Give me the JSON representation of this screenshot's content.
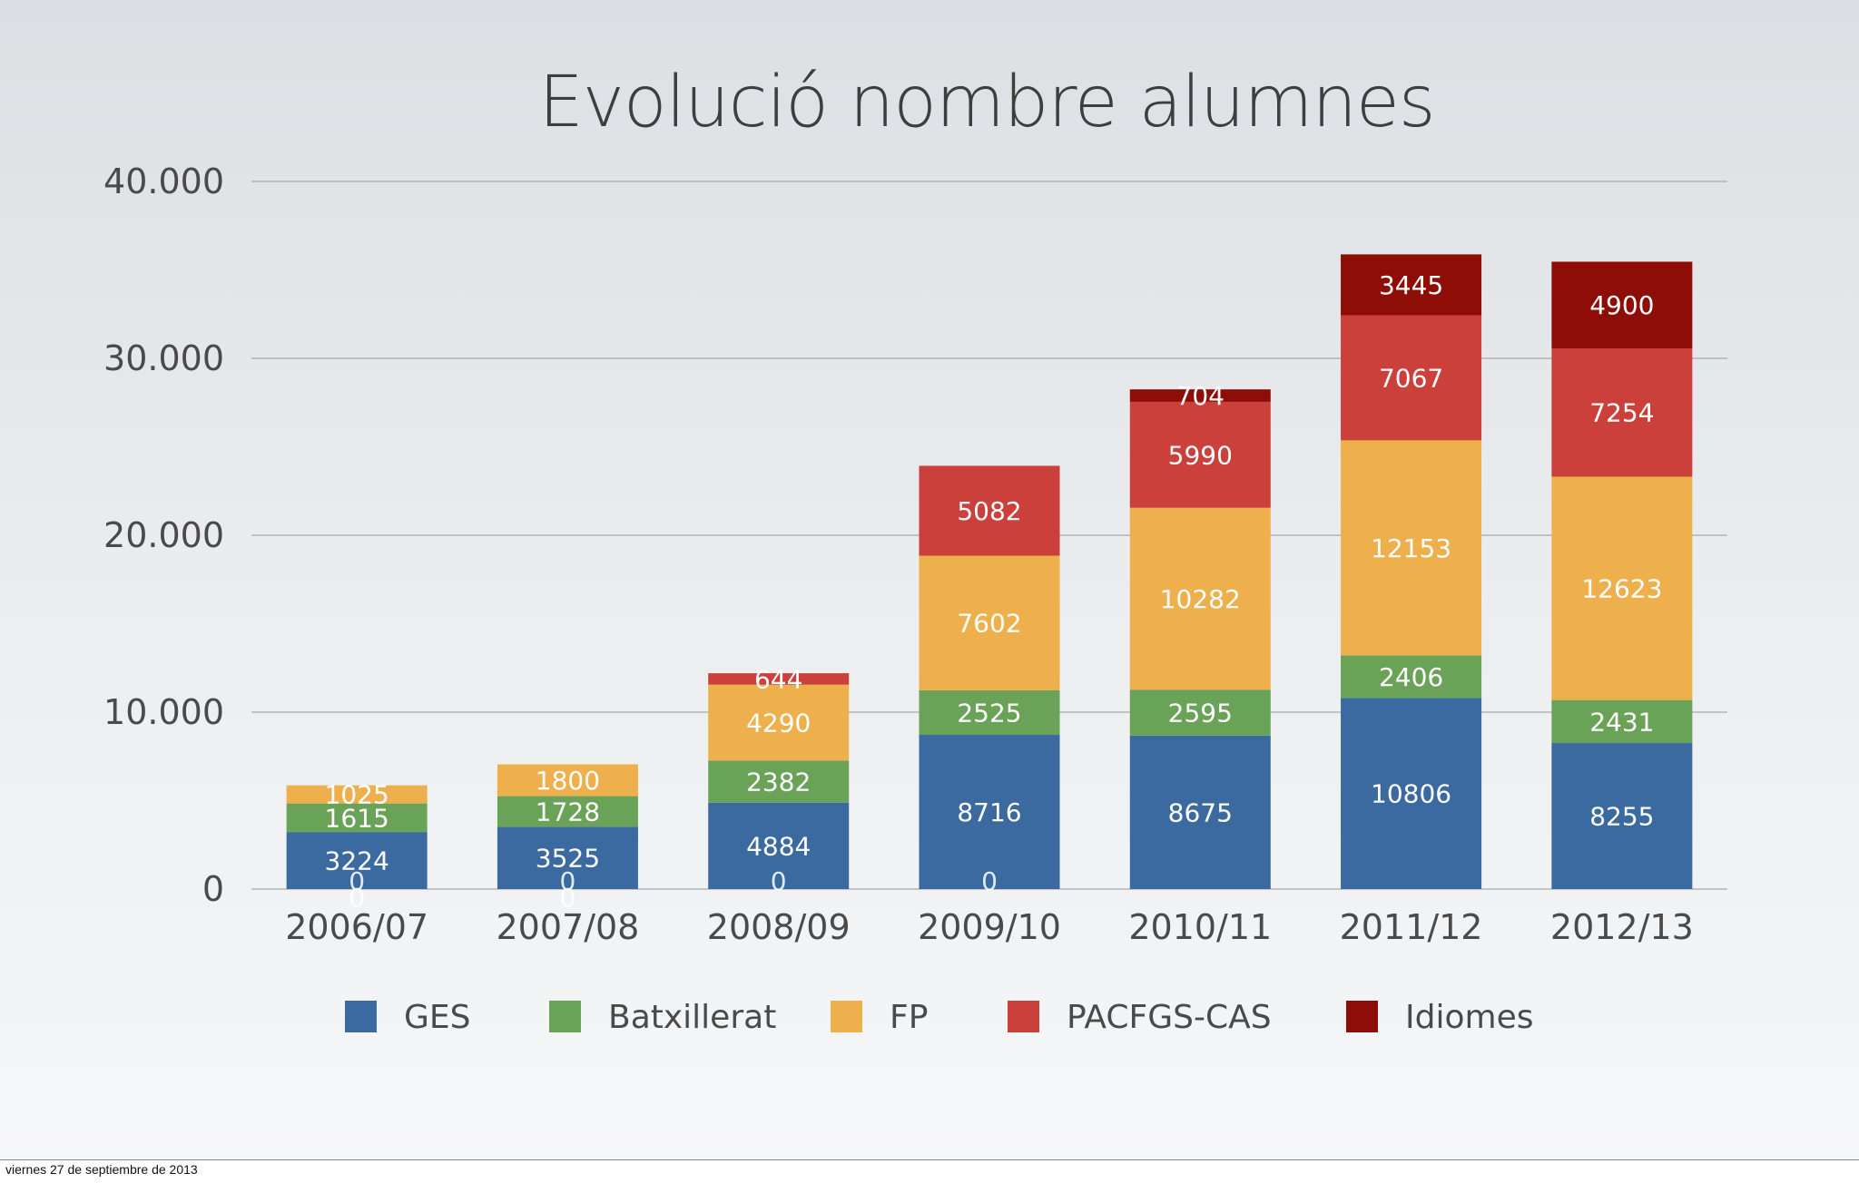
{
  "slide": {
    "footer_date": "viernes 27 de septiembre de 2013"
  },
  "chart_data": {
    "type": "bar",
    "stacked": true,
    "title": "Evolució nombre alumnes",
    "xlabel": "",
    "ylabel": "",
    "ylim": [
      0,
      40000
    ],
    "yticks": [
      0,
      10000,
      20000,
      30000,
      40000
    ],
    "ytick_labels": [
      "0",
      "10.000",
      "20.000",
      "30.000",
      "40.000"
    ],
    "grid": true,
    "legend_position": "bottom",
    "categories": [
      "2006/07",
      "2007/08",
      "2008/09",
      "2009/10",
      "2010/11",
      "2011/12",
      "2012/13"
    ],
    "series": [
      {
        "name": "GES",
        "color": "#3a6a9f",
        "values": [
          3224,
          3525,
          4884,
          8716,
          8675,
          10806,
          8255
        ]
      },
      {
        "name": "Batxillerat",
        "color": "#6aa258",
        "values": [
          1615,
          1728,
          2382,
          2525,
          2595,
          2406,
          2431
        ]
      },
      {
        "name": "FP",
        "color": "#edb04d",
        "values": [
          1025,
          1800,
          4290,
          7602,
          10282,
          12153,
          12623
        ]
      },
      {
        "name": "PACFGS-CAS",
        "color": "#cb403b",
        "values": [
          0,
          0,
          644,
          5082,
          5990,
          7067,
          7254
        ]
      },
      {
        "name": "Idiomes",
        "color": "#8e0d06",
        "values": [
          0,
          0,
          0,
          0,
          704,
          3445,
          4900
        ]
      }
    ],
    "overlay_labels": [
      {
        "category": "2006/07",
        "text": "0"
      },
      {
        "category": "2006/07",
        "text": "0"
      },
      {
        "category": "2007/08",
        "text": "0"
      },
      {
        "category": "2007/08",
        "text": "0"
      },
      {
        "category": "2008/09",
        "text": "0"
      },
      {
        "category": "2009/10",
        "text": "0"
      }
    ]
  }
}
